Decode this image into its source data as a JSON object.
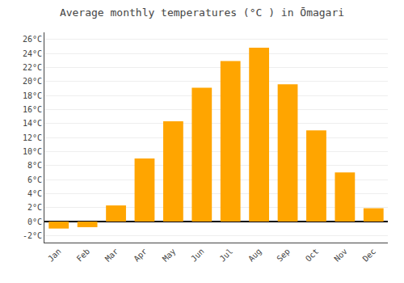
{
  "chart_data": {
    "type": "bar",
    "title": "Average monthly temperatures (°C ) in Ōmagari",
    "categories": [
      "Jan",
      "Feb",
      "Mar",
      "Apr",
      "May",
      "Jun",
      "Jul",
      "Aug",
      "Sep",
      "Oct",
      "Nov",
      "Dec"
    ],
    "values": [
      -1.0,
      -0.8,
      2.3,
      9.0,
      14.3,
      19.1,
      22.9,
      24.8,
      19.6,
      13.0,
      7.0,
      1.9
    ],
    "color": "#FFA500",
    "ylim": [
      -3,
      27
    ],
    "yticks": [
      {
        "value": -2,
        "label": "-2°C"
      },
      {
        "value": 0,
        "label": "0°C"
      },
      {
        "value": 2,
        "label": "2°C"
      },
      {
        "value": 4,
        "label": "4°C"
      },
      {
        "value": 6,
        "label": "6°C"
      },
      {
        "value": 8,
        "label": "8°C"
      },
      {
        "value": 10,
        "label": "10°C"
      },
      {
        "value": 12,
        "label": "12°C"
      },
      {
        "value": 14,
        "label": "14°C"
      },
      {
        "value": 16,
        "label": "16°C"
      },
      {
        "value": 18,
        "label": "18°C"
      },
      {
        "value": 20,
        "label": "20°C"
      },
      {
        "value": 22,
        "label": "22°C"
      },
      {
        "value": 24,
        "label": "24°C"
      },
      {
        "value": 26,
        "label": "26°C"
      }
    ],
    "grid": true
  }
}
